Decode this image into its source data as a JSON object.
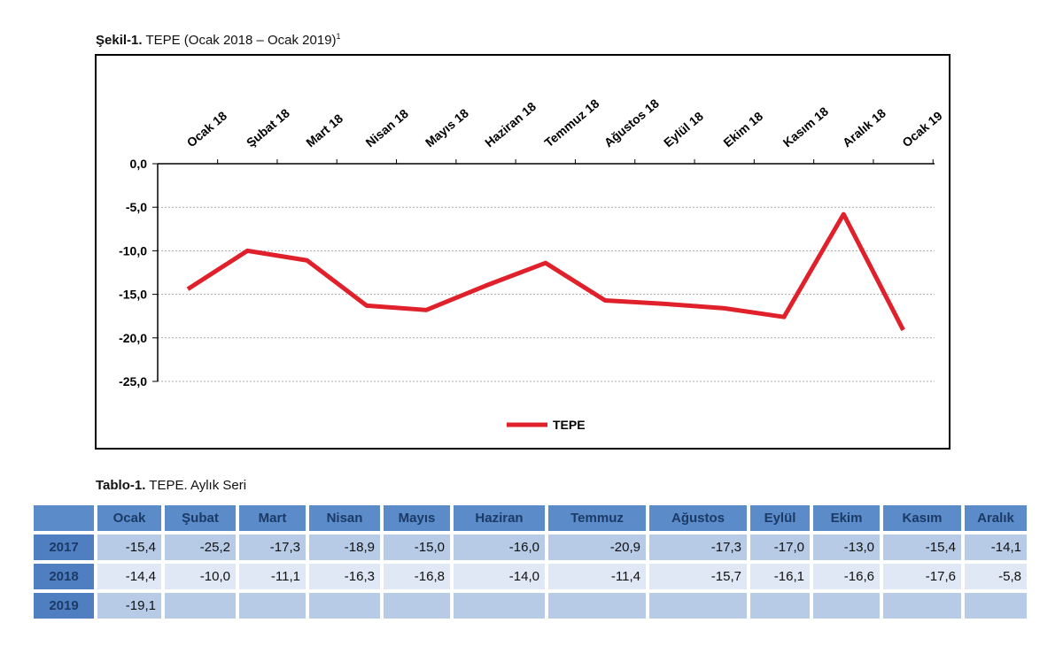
{
  "figure": {
    "label": "Şekil-1.",
    "title": "TEPE (Ocak 2018 – Ocak 2019)",
    "footnote": "1"
  },
  "chart_data": {
    "type": "line",
    "x": [
      "Ocak 18",
      "Şubat 18",
      "Mart 18",
      "Nisan 18",
      "Mayıs 18",
      "Haziran 18",
      "Temmuz 18",
      "Ağustos 18",
      "Eylül 18",
      "Ekim 18",
      "Kasım 18",
      "Aralık 18",
      "Ocak 19"
    ],
    "series": [
      {
        "name": "TEPE",
        "color": "#e0202a",
        "values": [
          -14.4,
          -10.0,
          -11.1,
          -16.3,
          -16.8,
          -14.0,
          -11.4,
          -15.7,
          -16.1,
          -16.6,
          -17.6,
          -5.8,
          -19.1
        ]
      }
    ],
    "yticks": [
      "0,0",
      "-5,0",
      "-10,0",
      "-15,0",
      "-20,0",
      "-25,0"
    ],
    "ylim": [
      -25,
      0
    ],
    "legend": "bottom-center",
    "grid": true
  },
  "table": {
    "label": "Tablo-1.",
    "title": "TEPE. Aylık Seri",
    "headers": [
      "Ocak",
      "Şubat",
      "Mart",
      "Nisan",
      "Mayıs",
      "Haziran",
      "Temmuz",
      "Ağustos",
      "Eylül",
      "Ekim",
      "Kasım",
      "Aralık"
    ],
    "rows": [
      {
        "year": "2017",
        "values": [
          "-15,4",
          "-25,2",
          "-17,3",
          "-18,9",
          "-15,0",
          "-16,0",
          "-20,9",
          "-17,3",
          "-17,0",
          "-13,0",
          "-15,4",
          "-14,1"
        ]
      },
      {
        "year": "2018",
        "values": [
          "-14,4",
          "-10,0",
          "-11,1",
          "-16,3",
          "-16,8",
          "-14,0",
          "-11,4",
          "-15,7",
          "-16,1",
          "-16,6",
          "-17,6",
          "-5,8"
        ]
      },
      {
        "year": "2019",
        "values": [
          "-19,1",
          "",
          "",
          "",
          "",
          "",
          "",
          "",
          "",
          "",
          "",
          ""
        ]
      }
    ]
  }
}
